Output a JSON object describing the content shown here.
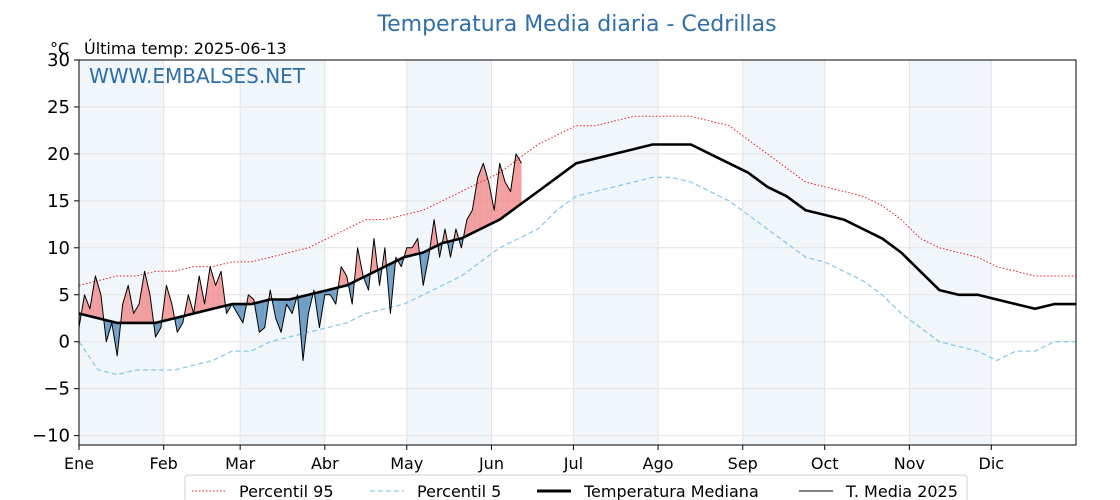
{
  "title": "Temperatura Media diaria - Cedrillas",
  "unit_label": "°C",
  "last_temp_label": "Última temp: 2025-06-13",
  "watermark": "WWW.EMBALSES.NET",
  "colors": {
    "title": "#2f6ea8",
    "p95": "#e41a1c",
    "p5": "#8ecae6",
    "median": "#000000",
    "current": "#000000",
    "above_fill": "#f08080",
    "below_fill": "#4682b4",
    "band": "#e6eff8"
  },
  "legend": [
    {
      "key": "p95",
      "label": "Percentil 95"
    },
    {
      "key": "p5",
      "label": "Percentil 5"
    },
    {
      "key": "median",
      "label": "Temperatura Mediana"
    },
    {
      "key": "current",
      "label": "T. Media 2025"
    }
  ],
  "chart_data": {
    "type": "line",
    "title": "Temperatura Media diaria - Cedrillas",
    "ylabel": "°C",
    "ylim": [
      -11,
      30
    ],
    "yticks": [
      -10,
      -5,
      0,
      5,
      10,
      15,
      20,
      25,
      30
    ],
    "ytick_labels": [
      "−10",
      "−5",
      "0",
      "5",
      "10",
      "15",
      "20",
      "25",
      "30"
    ],
    "xlim": [
      1,
      366
    ],
    "month_labels": [
      "Ene",
      "Feb",
      "Mar",
      "Abr",
      "May",
      "Jun",
      "Jul",
      "Ago",
      "Sep",
      "Oct",
      "Nov",
      "Dic"
    ],
    "month_start_days": [
      1,
      32,
      60,
      91,
      121,
      152,
      182,
      213,
      244,
      274,
      305,
      335
    ],
    "grid": true,
    "legend_position": "bottom",
    "series": [
      {
        "name": "Percentil 95",
        "key": "p95",
        "style": "dotted",
        "points": [
          [
            1,
            6
          ],
          [
            8,
            6.5
          ],
          [
            15,
            7
          ],
          [
            22,
            7
          ],
          [
            29,
            7.5
          ],
          [
            36,
            7.5
          ],
          [
            43,
            8
          ],
          [
            50,
            8
          ],
          [
            57,
            8.5
          ],
          [
            64,
            8.5
          ],
          [
            71,
            9
          ],
          [
            78,
            9.5
          ],
          [
            85,
            10
          ],
          [
            92,
            11
          ],
          [
            99,
            12
          ],
          [
            106,
            13
          ],
          [
            113,
            13
          ],
          [
            120,
            13.5
          ],
          [
            127,
            14
          ],
          [
            134,
            15
          ],
          [
            141,
            16
          ],
          [
            148,
            17
          ],
          [
            155,
            18
          ],
          [
            162,
            19.5
          ],
          [
            169,
            21
          ],
          [
            176,
            22
          ],
          [
            183,
            23
          ],
          [
            190,
            23
          ],
          [
            197,
            23.5
          ],
          [
            204,
            24
          ],
          [
            211,
            24
          ],
          [
            218,
            24
          ],
          [
            225,
            24
          ],
          [
            232,
            23.5
          ],
          [
            239,
            23
          ],
          [
            246,
            21.5
          ],
          [
            253,
            20
          ],
          [
            260,
            18.5
          ],
          [
            267,
            17
          ],
          [
            274,
            16.5
          ],
          [
            281,
            16
          ],
          [
            288,
            15.5
          ],
          [
            295,
            14.5
          ],
          [
            302,
            13
          ],
          [
            309,
            11
          ],
          [
            316,
            10
          ],
          [
            323,
            9.5
          ],
          [
            330,
            9
          ],
          [
            337,
            8
          ],
          [
            344,
            7.5
          ],
          [
            351,
            7
          ],
          [
            358,
            7
          ],
          [
            366,
            7
          ]
        ]
      },
      {
        "name": "Percentil 5",
        "key": "p5",
        "style": "dashed",
        "points": [
          [
            1,
            0
          ],
          [
            8,
            -3
          ],
          [
            15,
            -3.5
          ],
          [
            22,
            -3
          ],
          [
            29,
            -3
          ],
          [
            36,
            -3
          ],
          [
            43,
            -2.5
          ],
          [
            50,
            -2
          ],
          [
            57,
            -1
          ],
          [
            64,
            -1
          ],
          [
            71,
            0
          ],
          [
            78,
            0.5
          ],
          [
            85,
            1
          ],
          [
            92,
            1.5
          ],
          [
            99,
            2
          ],
          [
            106,
            3
          ],
          [
            113,
            3.5
          ],
          [
            120,
            4
          ],
          [
            127,
            5
          ],
          [
            134,
            6
          ],
          [
            141,
            7
          ],
          [
            148,
            8.5
          ],
          [
            155,
            10
          ],
          [
            162,
            11
          ],
          [
            169,
            12
          ],
          [
            176,
            14
          ],
          [
            183,
            15.5
          ],
          [
            190,
            16
          ],
          [
            197,
            16.5
          ],
          [
            204,
            17
          ],
          [
            211,
            17.5
          ],
          [
            218,
            17.5
          ],
          [
            225,
            17
          ],
          [
            232,
            16
          ],
          [
            239,
            15
          ],
          [
            246,
            13.5
          ],
          [
            253,
            12
          ],
          [
            260,
            10.5
          ],
          [
            267,
            9
          ],
          [
            274,
            8.5
          ],
          [
            281,
            7.5
          ],
          [
            288,
            6.5
          ],
          [
            295,
            5
          ],
          [
            302,
            3
          ],
          [
            309,
            1.5
          ],
          [
            316,
            0
          ],
          [
            323,
            -0.5
          ],
          [
            330,
            -1
          ],
          [
            337,
            -2
          ],
          [
            344,
            -1
          ],
          [
            351,
            -1
          ],
          [
            358,
            0
          ],
          [
            366,
            0
          ]
        ]
      },
      {
        "name": "Temperatura Mediana",
        "key": "median",
        "style": "solid-thick",
        "points": [
          [
            1,
            3
          ],
          [
            8,
            2.5
          ],
          [
            15,
            2
          ],
          [
            22,
            2
          ],
          [
            29,
            2
          ],
          [
            36,
            2.5
          ],
          [
            43,
            3
          ],
          [
            50,
            3.5
          ],
          [
            57,
            4
          ],
          [
            64,
            4
          ],
          [
            71,
            4.5
          ],
          [
            78,
            4.5
          ],
          [
            85,
            5
          ],
          [
            92,
            5.5
          ],
          [
            99,
            6
          ],
          [
            106,
            7
          ],
          [
            113,
            8
          ],
          [
            120,
            9
          ],
          [
            127,
            9.5
          ],
          [
            134,
            10.5
          ],
          [
            141,
            11
          ],
          [
            148,
            12
          ],
          [
            155,
            13
          ],
          [
            162,
            14.5
          ],
          [
            169,
            16
          ],
          [
            176,
            17.5
          ],
          [
            183,
            19
          ],
          [
            190,
            19.5
          ],
          [
            197,
            20
          ],
          [
            204,
            20.5
          ],
          [
            211,
            21
          ],
          [
            218,
            21
          ],
          [
            225,
            21
          ],
          [
            232,
            20
          ],
          [
            239,
            19
          ],
          [
            246,
            18
          ],
          [
            253,
            16.5
          ],
          [
            260,
            15.5
          ],
          [
            267,
            14
          ],
          [
            274,
            13.5
          ],
          [
            281,
            13
          ],
          [
            288,
            12
          ],
          [
            295,
            11
          ],
          [
            302,
            9.5
          ],
          [
            309,
            7.5
          ],
          [
            316,
            5.5
          ],
          [
            323,
            5
          ],
          [
            330,
            5
          ],
          [
            337,
            4.5
          ],
          [
            344,
            4
          ],
          [
            351,
            3.5
          ],
          [
            358,
            4
          ],
          [
            366,
            4
          ]
        ]
      },
      {
        "name": "T. Media 2025",
        "key": "current",
        "style": "solid-thin",
        "points": [
          [
            1,
            1.5
          ],
          [
            3,
            5
          ],
          [
            5,
            3.5
          ],
          [
            7,
            7
          ],
          [
            9,
            5
          ],
          [
            11,
            0
          ],
          [
            13,
            2
          ],
          [
            15,
            -1.5
          ],
          [
            17,
            4
          ],
          [
            19,
            6
          ],
          [
            21,
            3
          ],
          [
            23,
            4
          ],
          [
            25,
            7.5
          ],
          [
            27,
            5
          ],
          [
            29,
            0.5
          ],
          [
            31,
            1.5
          ],
          [
            33,
            6
          ],
          [
            35,
            4
          ],
          [
            37,
            1
          ],
          [
            39,
            2
          ],
          [
            41,
            5
          ],
          [
            43,
            3
          ],
          [
            45,
            7
          ],
          [
            47,
            4
          ],
          [
            49,
            8
          ],
          [
            51,
            6
          ],
          [
            53,
            7.5
          ],
          [
            55,
            3
          ],
          [
            57,
            4
          ],
          [
            59,
            3
          ],
          [
            61,
            2
          ],
          [
            63,
            5
          ],
          [
            65,
            4.5
          ],
          [
            67,
            1
          ],
          [
            69,
            1.5
          ],
          [
            71,
            5.5
          ],
          [
            73,
            2.5
          ],
          [
            75,
            1
          ],
          [
            77,
            4
          ],
          [
            79,
            3
          ],
          [
            81,
            5
          ],
          [
            83,
            -2
          ],
          [
            85,
            3
          ],
          [
            87,
            5.5
          ],
          [
            89,
            1.5
          ],
          [
            91,
            5
          ],
          [
            93,
            5
          ],
          [
            95,
            4
          ],
          [
            97,
            8
          ],
          [
            99,
            7
          ],
          [
            101,
            4
          ],
          [
            103,
            10
          ],
          [
            105,
            7
          ],
          [
            107,
            5.5
          ],
          [
            109,
            11
          ],
          [
            111,
            6
          ],
          [
            113,
            10
          ],
          [
            115,
            3
          ],
          [
            117,
            9
          ],
          [
            119,
            8
          ],
          [
            121,
            10
          ],
          [
            123,
            10
          ],
          [
            125,
            11
          ],
          [
            127,
            6
          ],
          [
            129,
            9
          ],
          [
            131,
            13
          ],
          [
            133,
            9
          ],
          [
            135,
            12
          ],
          [
            137,
            9
          ],
          [
            139,
            12
          ],
          [
            141,
            10
          ],
          [
            143,
            13
          ],
          [
            145,
            14
          ],
          [
            147,
            17.5
          ],
          [
            149,
            19
          ],
          [
            151,
            17
          ],
          [
            153,
            14
          ],
          [
            155,
            19
          ],
          [
            157,
            17
          ],
          [
            159,
            16
          ],
          [
            161,
            20
          ],
          [
            163,
            19
          ]
        ]
      }
    ]
  }
}
